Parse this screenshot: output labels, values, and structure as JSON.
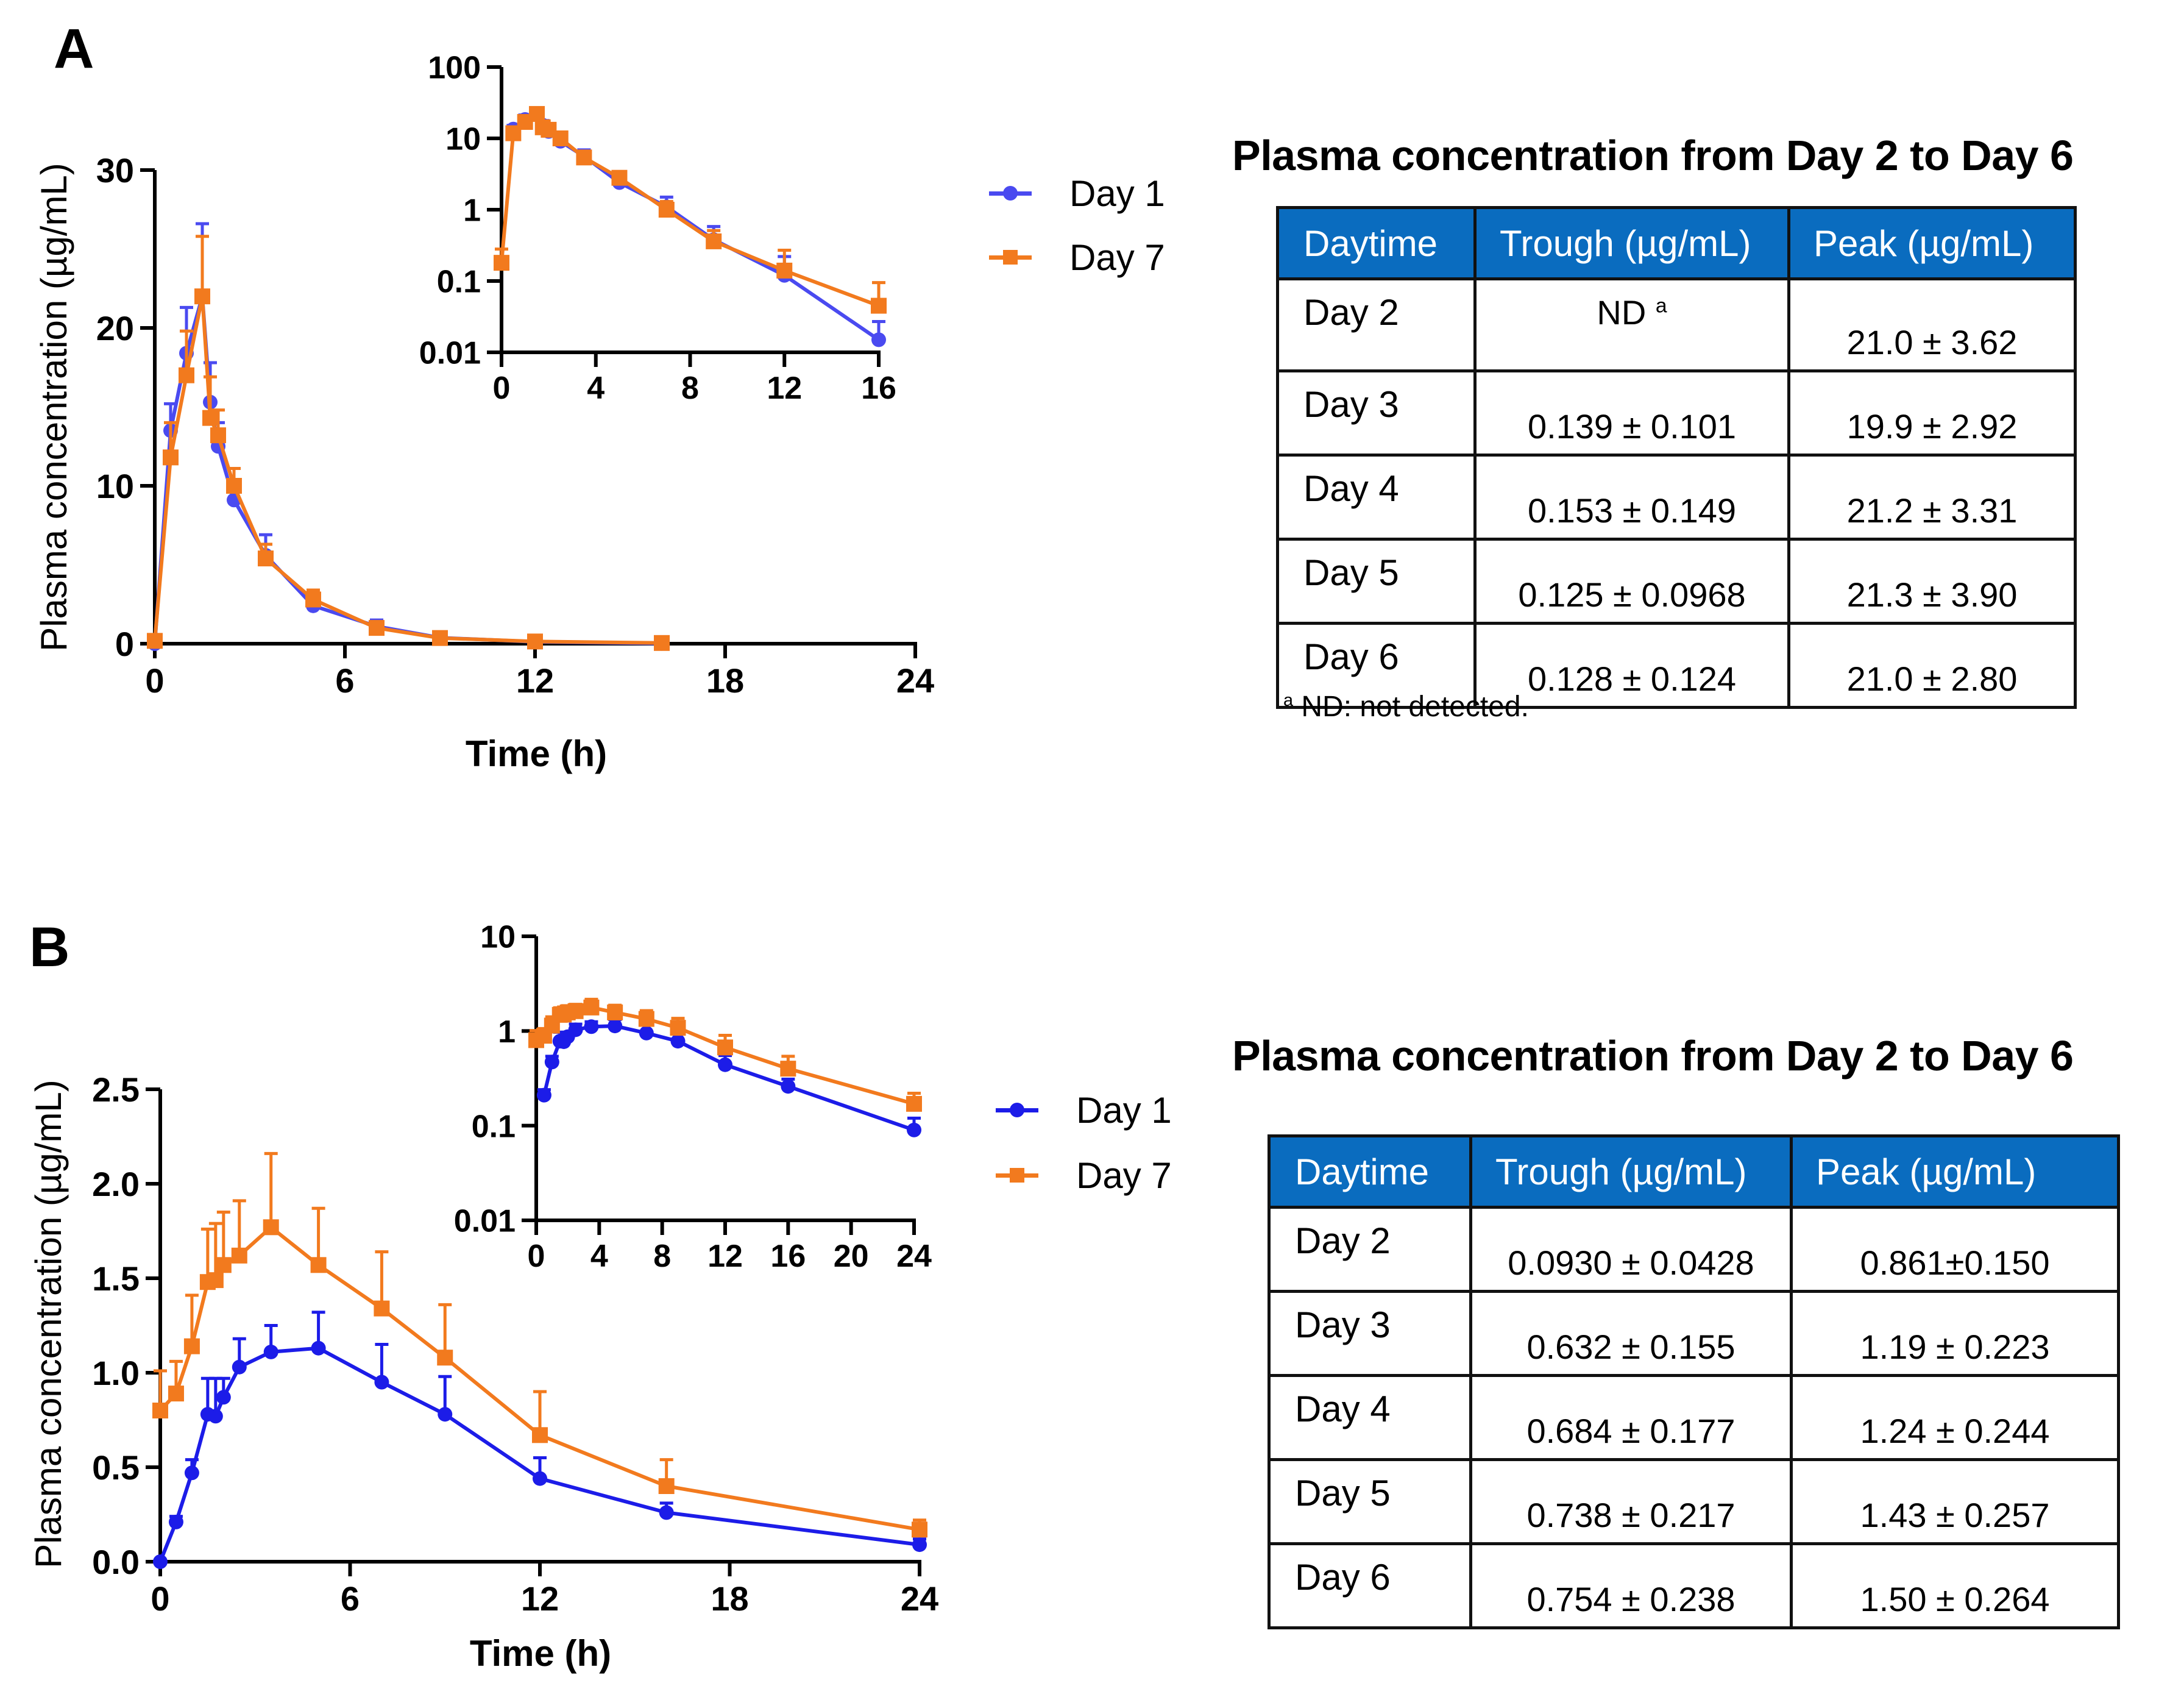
{
  "panels": [
    {
      "label": "A",
      "legend": [
        {
          "name": "Day 1",
          "color": "#4a4af0",
          "marker": "circle"
        },
        {
          "name": "Day 7",
          "color": "#f27a1e",
          "marker": "square"
        }
      ],
      "table": {
        "title": "Plasma concentration from Day 2 to Day 6",
        "headers": [
          "Daytime",
          "Trough (µg/mL)",
          "Peak (µg/mL)"
        ],
        "rows": [
          {
            "day": "Day 2",
            "trough": "ND",
            "trough_sup": "a",
            "peak": "21.0 ± 3.62"
          },
          {
            "day": "Day 3",
            "trough": "0.139 ± 0.101",
            "peak": "19.9 ± 2.92"
          },
          {
            "day": "Day 4",
            "trough": "0.153 ± 0.149",
            "peak": "21.2 ± 3.31"
          },
          {
            "day": "Day 5",
            "trough": "0.125 ± 0.0968",
            "peak": "21.3 ± 3.90"
          },
          {
            "day": "Day 6",
            "trough": "0.128 ± 0.124",
            "peak": "21.0 ± 2.80"
          }
        ],
        "footnote_sup": "a",
        "footnote": "ND: not detected."
      }
    },
    {
      "label": "B",
      "legend": [
        {
          "name": "Day 1",
          "color": "#1c1ce8",
          "marker": "circle"
        },
        {
          "name": "Day 7",
          "color": "#f27a1e",
          "marker": "square"
        }
      ],
      "table": {
        "title": "Plasma concentration from Day 2 to Day 6",
        "headers": [
          "Daytime",
          "Trough (µg/mL)",
          "Peak (µg/mL)"
        ],
        "rows": [
          {
            "day": "Day 2",
            "trough": "0.0930 ± 0.0428",
            "peak": "0.861±0.150"
          },
          {
            "day": "Day 3",
            "trough": "0.632 ± 0.155",
            "peak": "1.19 ± 0.223"
          },
          {
            "day": "Day 4",
            "trough": "0.684 ± 0.177",
            "peak": "1.24 ± 0.244"
          },
          {
            "day": "Day 5",
            "trough": "0.738 ± 0.217",
            "peak": "1.43 ± 0.257"
          },
          {
            "day": "Day 6",
            "trough": "0.754 ± 0.238",
            "peak": "1.50 ± 0.264"
          }
        ]
      }
    }
  ],
  "chart_data": [
    {
      "id": "A-main",
      "type": "line",
      "title": "",
      "xlabel": "Time (h)",
      "ylabel": "Plasma concentration (µg/mL)",
      "xlim": [
        0,
        24
      ],
      "ylim": [
        0,
        30
      ],
      "yscale": "linear",
      "xticks": [
        "0",
        "6",
        "12",
        "18",
        "24"
      ],
      "yticks": [
        "0",
        "10",
        "20",
        "30"
      ],
      "series": [
        {
          "name": "Day 1",
          "color": "#4a4af0",
          "marker": "circle",
          "x": [
            0,
            0.5,
            1,
            1.5,
            1.75,
            2,
            2.5,
            3.5,
            5,
            7,
            9,
            12,
            16
          ],
          "y": [
            0,
            13.5,
            18.4,
            22.0,
            15.3,
            12.5,
            9.1,
            5.6,
            2.4,
            1.1,
            0.38,
            0.12,
            0.015
          ],
          "sd": [
            0,
            1.7,
            2.9,
            4.6,
            2.5,
            1.5,
            1.3,
            1.3,
            0.5,
            0.4,
            0.2,
            0.1,
            0.012
          ]
        },
        {
          "name": "Day 7",
          "color": "#f27a1e",
          "marker": "square",
          "x": [
            0,
            0.5,
            1,
            1.5,
            1.75,
            2,
            2.5,
            3.5,
            5,
            7,
            9,
            12,
            16
          ],
          "y": [
            0.18,
            11.8,
            17.0,
            22.0,
            14.3,
            13.2,
            10.0,
            5.4,
            2.8,
            1.0,
            0.36,
            0.14,
            0.045
          ],
          "sd": [
            0.1,
            2.2,
            2.8,
            3.8,
            2.6,
            1.6,
            1.1,
            0.9,
            0.6,
            0.3,
            0.15,
            0.13,
            0.05
          ]
        }
      ]
    },
    {
      "id": "A-inset",
      "type": "line",
      "title": "",
      "xlabel": "",
      "ylabel": "",
      "xlim": [
        0,
        16
      ],
      "ylim": [
        0.01,
        100
      ],
      "yscale": "log",
      "xticks": [
        "0",
        "4",
        "8",
        "12",
        "16"
      ],
      "yticks": [
        "0.01",
        "0.1",
        "1",
        "10",
        "100"
      ],
      "series": [
        {
          "name": "Day 1",
          "color": "#4a4af0",
          "marker": "circle",
          "x": [
            0,
            0.5,
            1,
            1.5,
            1.75,
            2,
            2.5,
            3.5,
            5,
            7,
            9,
            12,
            16
          ],
          "y": [
            0,
            13.5,
            18.4,
            22.0,
            15.3,
            12.5,
            9.1,
            5.6,
            2.4,
            1.1,
            0.38,
            0.12,
            0.015
          ],
          "sd": [
            0,
            1.7,
            2.9,
            4.6,
            2.5,
            1.5,
            1.3,
            1.3,
            0.5,
            0.4,
            0.2,
            0.1,
            0.012
          ]
        },
        {
          "name": "Day 7",
          "color": "#f27a1e",
          "marker": "square",
          "x": [
            0,
            0.5,
            1,
            1.5,
            1.75,
            2,
            2.5,
            3.5,
            5,
            7,
            9,
            12,
            16
          ],
          "y": [
            0.18,
            11.8,
            17.0,
            22.0,
            14.3,
            13.2,
            10.0,
            5.4,
            2.8,
            1.0,
            0.36,
            0.14,
            0.045
          ],
          "sd": [
            0.1,
            2.2,
            2.8,
            3.8,
            2.6,
            1.6,
            1.1,
            0.9,
            0.6,
            0.3,
            0.15,
            0.13,
            0.05
          ]
        }
      ]
    },
    {
      "id": "B-main",
      "type": "line",
      "title": "",
      "xlabel": "Time (h)",
      "ylabel": "Plasma concentration (µg/mL)",
      "xlim": [
        0,
        24
      ],
      "ylim": [
        0,
        2.5
      ],
      "yscale": "linear",
      "xticks": [
        "0",
        "6",
        "12",
        "18",
        "24"
      ],
      "yticks": [
        "0.0",
        "0.5",
        "1.0",
        "1.5",
        "2.0",
        "2.5"
      ],
      "series": [
        {
          "name": "Day 1",
          "color": "#1c1ce8",
          "marker": "circle",
          "x": [
            0,
            0.5,
            1,
            1.5,
            1.75,
            2,
            2.5,
            3.5,
            5,
            7,
            9,
            12,
            16,
            24
          ],
          "y": [
            0,
            0.21,
            0.47,
            0.78,
            0.77,
            0.87,
            1.03,
            1.11,
            1.13,
            0.95,
            0.78,
            0.44,
            0.26,
            0.09
          ],
          "sd": [
            0,
            0.03,
            0.07,
            0.19,
            0.2,
            0.1,
            0.15,
            0.14,
            0.19,
            0.2,
            0.2,
            0.11,
            0.05,
            0.03
          ]
        },
        {
          "name": "Day 7",
          "color": "#f27a1e",
          "marker": "square",
          "x": [
            0,
            0.5,
            1,
            1.5,
            1.75,
            2,
            2.5,
            3.5,
            5,
            7,
            9,
            12,
            16,
            24
          ],
          "y": [
            0.8,
            0.89,
            1.14,
            1.48,
            1.49,
            1.57,
            1.62,
            1.77,
            1.57,
            1.34,
            1.08,
            0.67,
            0.4,
            0.17
          ],
          "sd": [
            0.21,
            0.17,
            0.27,
            0.28,
            0.3,
            0.28,
            0.29,
            0.39,
            0.3,
            0.3,
            0.28,
            0.23,
            0.14,
            0.05
          ]
        }
      ]
    },
    {
      "id": "B-inset",
      "type": "line",
      "title": "",
      "xlabel": "",
      "ylabel": "",
      "xlim": [
        0,
        24
      ],
      "ylim": [
        0.01,
        10
      ],
      "yscale": "log",
      "xticks": [
        "0",
        "4",
        "8",
        "12",
        "16",
        "20",
        "24"
      ],
      "yticks": [
        "0.01",
        "0.1",
        "1",
        "10"
      ],
      "series": [
        {
          "name": "Day 1",
          "color": "#1c1ce8",
          "marker": "circle",
          "x": [
            0,
            0.5,
            1,
            1.5,
            1.75,
            2,
            2.5,
            3.5,
            5,
            7,
            9,
            12,
            16,
            24
          ],
          "y": [
            0,
            0.21,
            0.47,
            0.78,
            0.77,
            0.87,
            1.03,
            1.11,
            1.13,
            0.95,
            0.78,
            0.44,
            0.26,
            0.09
          ],
          "sd": [
            0,
            0.03,
            0.07,
            0.19,
            0.2,
            0.1,
            0.15,
            0.14,
            0.19,
            0.2,
            0.2,
            0.11,
            0.05,
            0.03
          ]
        },
        {
          "name": "Day 7",
          "color": "#f27a1e",
          "marker": "square",
          "x": [
            0,
            0.5,
            1,
            1.5,
            1.75,
            2,
            2.5,
            3.5,
            5,
            7,
            9,
            12,
            16,
            24
          ],
          "y": [
            0.8,
            0.89,
            1.14,
            1.48,
            1.49,
            1.57,
            1.62,
            1.77,
            1.57,
            1.34,
            1.08,
            0.67,
            0.4,
            0.17
          ],
          "sd": [
            0.21,
            0.17,
            0.27,
            0.28,
            0.3,
            0.28,
            0.29,
            0.39,
            0.3,
            0.3,
            0.28,
            0.23,
            0.14,
            0.05
          ]
        }
      ]
    }
  ]
}
